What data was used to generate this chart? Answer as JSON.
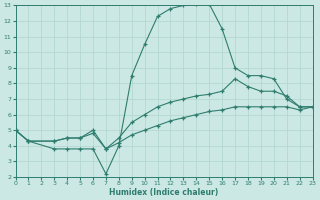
{
  "xlabel": "Humidex (Indice chaleur)",
  "bg_color": "#cce8e4",
  "line_color": "#2e7d6e",
  "grid_color": "#b0d4cf",
  "xlim": [
    0,
    23
  ],
  "ylim": [
    2,
    13
  ],
  "xticks": [
    0,
    1,
    2,
    3,
    4,
    5,
    6,
    7,
    8,
    9,
    10,
    11,
    12,
    13,
    14,
    15,
    16,
    17,
    18,
    19,
    20,
    21,
    22,
    23
  ],
  "yticks": [
    2,
    3,
    4,
    5,
    6,
    7,
    8,
    9,
    10,
    11,
    12,
    13
  ],
  "line1_x": [
    0,
    1,
    3,
    4,
    5,
    6,
    7,
    8,
    9,
    10,
    11,
    12,
    13,
    14,
    15,
    16,
    17,
    18,
    19,
    20,
    21,
    22,
    23
  ],
  "line1_y": [
    5.0,
    4.3,
    3.8,
    3.8,
    3.8,
    3.8,
    2.2,
    4.0,
    8.5,
    10.5,
    12.3,
    12.8,
    13.0,
    13.1,
    13.1,
    11.5,
    9.0,
    8.5,
    8.5,
    8.3,
    7.0,
    6.5,
    6.5
  ],
  "line2_x": [
    0,
    1,
    3,
    4,
    5,
    6,
    7,
    8,
    9,
    10,
    11,
    12,
    13,
    14,
    15,
    16,
    17,
    18,
    19,
    20,
    21,
    22,
    23
  ],
  "line2_y": [
    5.0,
    4.3,
    4.3,
    4.5,
    4.5,
    5.0,
    3.8,
    4.5,
    5.5,
    6.0,
    6.5,
    6.8,
    7.0,
    7.2,
    7.3,
    7.5,
    8.3,
    7.8,
    7.5,
    7.5,
    7.2,
    6.5,
    6.5
  ],
  "line3_x": [
    0,
    1,
    3,
    4,
    5,
    6,
    7,
    8,
    9,
    10,
    11,
    12,
    13,
    14,
    15,
    16,
    17,
    18,
    19,
    20,
    21,
    22,
    23
  ],
  "line3_y": [
    5.0,
    4.3,
    4.3,
    4.5,
    4.5,
    4.8,
    3.8,
    4.2,
    4.7,
    5.0,
    5.3,
    5.6,
    5.8,
    6.0,
    6.2,
    6.3,
    6.5,
    6.5,
    6.5,
    6.5,
    6.5,
    6.3,
    6.5
  ]
}
